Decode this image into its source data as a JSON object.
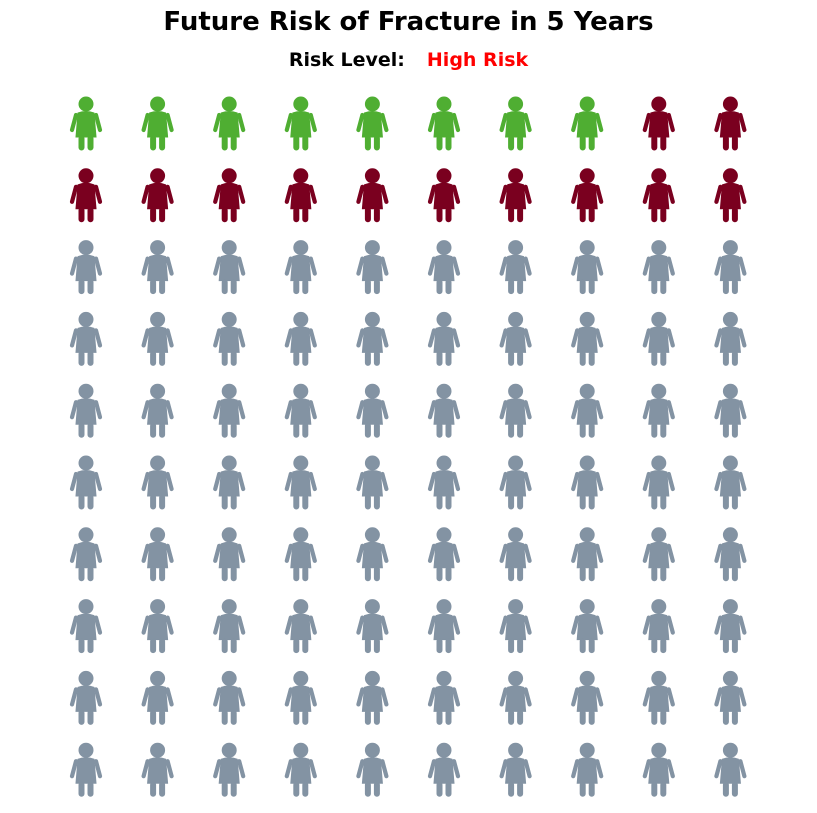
{
  "title": "Future Risk of Fracture in 5 Years",
  "risk": {
    "label": "Risk Level:",
    "value": "High Risk",
    "value_color": "#ff0000"
  },
  "chart_data": {
    "type": "pictograph",
    "icon": "woman-figure-icon",
    "rows": 10,
    "columns": 10,
    "total": 100,
    "series": [
      {
        "name": "",
        "count": 8,
        "color": "#4fae32"
      },
      {
        "name": "",
        "count": 12,
        "color": "#7a001f"
      },
      {
        "name": "",
        "count": 80,
        "color": "#8393a3"
      }
    ]
  }
}
